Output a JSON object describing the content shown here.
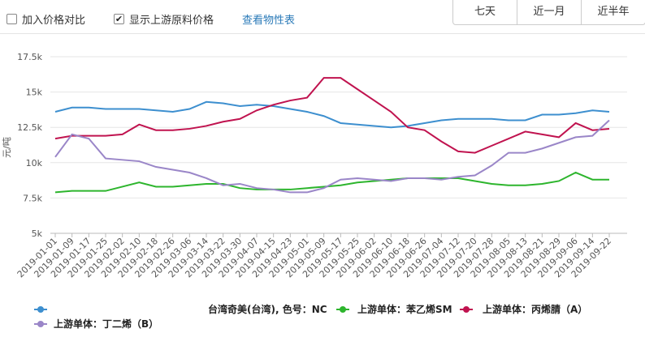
{
  "toolbar": {
    "compare": {
      "label": "加入价格对比",
      "checked": false
    },
    "upstream": {
      "label": "显示上游原料价格",
      "checked": true
    },
    "link": "查看物性表",
    "ranges": [
      "七天",
      "近一月",
      "近半年"
    ]
  },
  "chart_data": {
    "type": "line",
    "y_label": "元/吨",
    "categories": [
      "2019-01-01",
      "2019-01-09",
      "2019-01-17",
      "2019-01-25",
      "2019-02-02",
      "2019-02-10",
      "2019-02-18",
      "2019-02-26",
      "2019-03-06",
      "2019-03-14",
      "2019-03-22",
      "2019-03-30",
      "2019-04-07",
      "2019-04-15",
      "2019-04-23",
      "2019-05-01",
      "2019-05-09",
      "2019-05-17",
      "2019-05-25",
      "2019-06-02",
      "2019-06-10",
      "2019-06-18",
      "2019-06-26",
      "2019-07-04",
      "2019-07-12",
      "2019-07-20",
      "2019-07-28",
      "2019-08-05",
      "2019-08-13",
      "2019-08-21",
      "2019-08-29",
      "2019-09-06",
      "2019-09-14",
      "2019-09-22"
    ],
    "series": [
      {
        "name": "台湾奇美(台湾), 色号：NC",
        "color": "#3d8fcf",
        "values": [
          13600,
          13900,
          13900,
          13800,
          13800,
          13800,
          13700,
          13600,
          13800,
          14300,
          14200,
          14000,
          14100,
          14000,
          13800,
          13600,
          13300,
          12800,
          12700,
          12600,
          12500,
          12600,
          12800,
          13000,
          13100,
          13100,
          13100,
          13000,
          13000,
          13400,
          13400,
          13500,
          13700,
          13600
        ]
      },
      {
        "name": "上游单体：苯乙烯SM",
        "color": "#2db52d",
        "values": [
          7900,
          8000,
          8000,
          8000,
          8300,
          8600,
          8300,
          8300,
          8400,
          8500,
          8500,
          8200,
          8100,
          8100,
          8100,
          8200,
          8300,
          8400,
          8600,
          8700,
          8800,
          8900,
          8900,
          8900,
          8900,
          8700,
          8500,
          8400,
          8400,
          8500,
          8700,
          9300,
          8800,
          8800
        ]
      },
      {
        "name": "上游单体：丙烯腈（A）",
        "color": "#c0134f",
        "values": [
          11700,
          11900,
          11900,
          11900,
          12000,
          12700,
          12300,
          12300,
          12400,
          12600,
          12900,
          13100,
          13700,
          14100,
          14400,
          14600,
          16000,
          16000,
          15200,
          14400,
          13600,
          12500,
          12300,
          11500,
          10800,
          10700,
          11200,
          11700,
          12200,
          12000,
          11800,
          12800,
          12300,
          12400
        ]
      },
      {
        "name": "上游单体：丁二烯（B）",
        "color": "#9a86c8",
        "values": [
          10400,
          12000,
          11700,
          10300,
          10200,
          10100,
          9700,
          9500,
          9300,
          8900,
          8400,
          8500,
          8200,
          8100,
          7900,
          7900,
          8200,
          8800,
          8900,
          8800,
          8700,
          8900,
          8900,
          8800,
          9000,
          9100,
          9800,
          10700,
          10700,
          11000,
          11400,
          11800,
          11900,
          13000
        ]
      }
    ],
    "ylim": [
      5000,
      17500
    ],
    "yticks": [
      {
        "value": 5000,
        "label": "5k"
      },
      {
        "value": 7500,
        "label": "7.5k"
      },
      {
        "value": 10000,
        "label": "10k"
      },
      {
        "value": 12500,
        "label": "12.5k"
      },
      {
        "value": 15000,
        "label": "15k"
      },
      {
        "value": 17500,
        "label": "17.5k"
      }
    ],
    "grid": true
  }
}
